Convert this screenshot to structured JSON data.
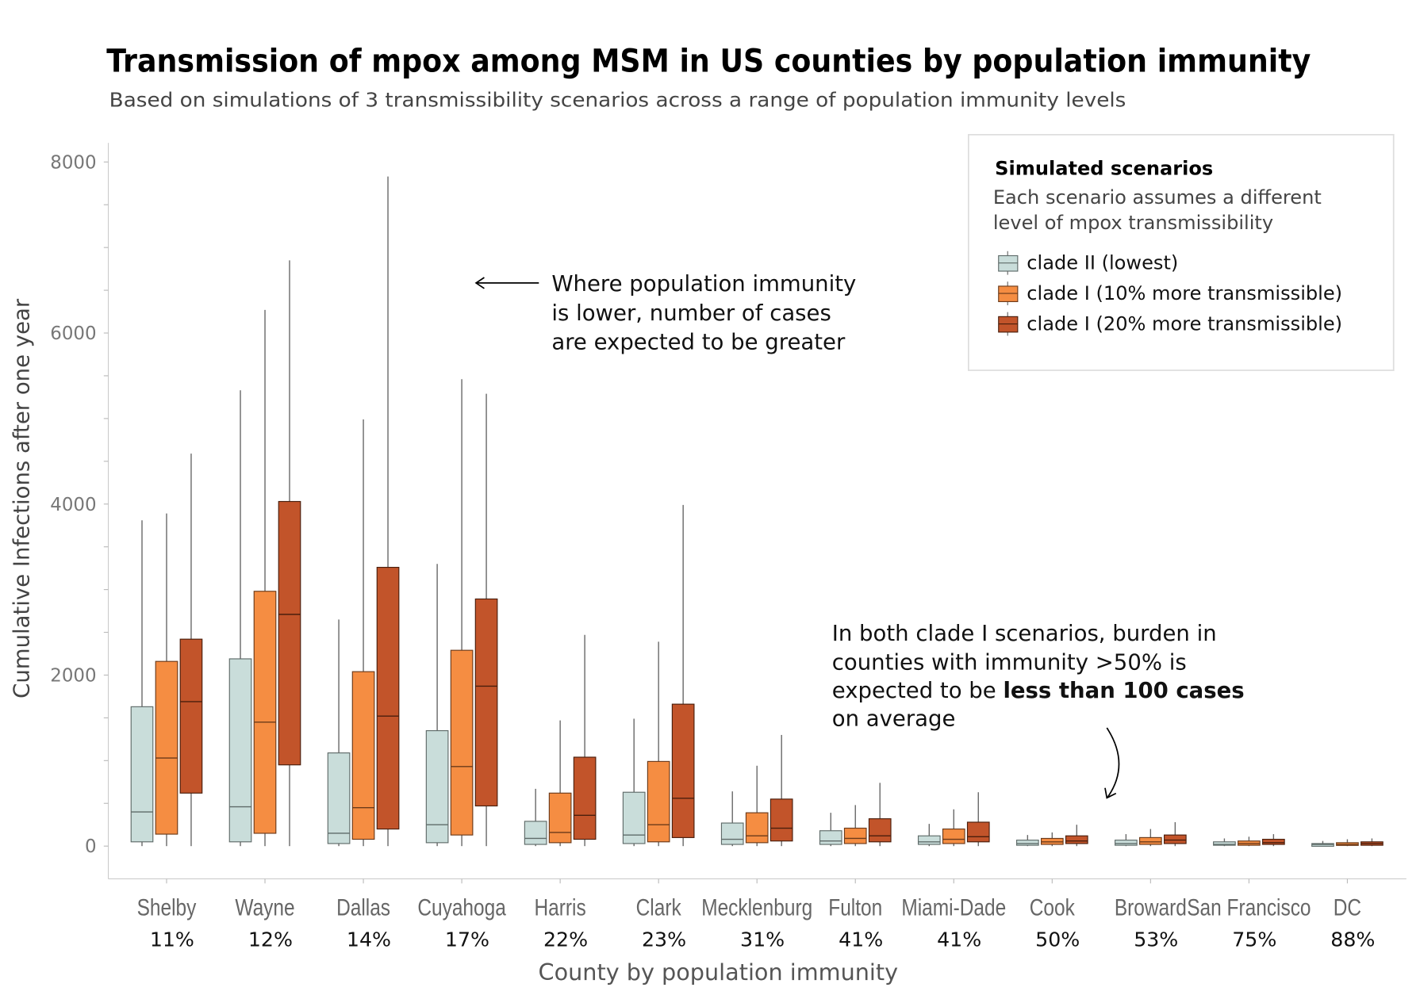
{
  "chart_data": {
    "type": "box",
    "title": "Transmission of mpox among MSM in US counties by population immunity",
    "subtitle": "Based on simulations of 3 transmissibility scenarios across a range of population immunity levels",
    "xlabel": "County by population immunity",
    "ylabel": "Cumulative Infections after one year",
    "ylim": [
      0,
      8000
    ],
    "yticks": [
      "0",
      "2000",
      "4000",
      "6000",
      "8000"
    ],
    "grid": false,
    "legend_placement": "top-right",
    "categories": [
      "Shelby",
      "Wayne",
      "Dallas",
      "Cuyahoga",
      "Harris",
      "Clark",
      "Mecklenburg",
      "Fulton",
      "Miami-Dade",
      "Cook",
      "Broward",
      "San Francisco",
      "DC"
    ],
    "immunity": [
      "11%",
      "12%",
      "14%",
      "17%",
      "22%",
      "23%",
      "31%",
      "41%",
      "41%",
      "50%",
      "53%",
      "75%",
      "88%"
    ],
    "series": [
      {
        "name": "clade II (lowest)",
        "color": "#c9ddda",
        "stroke": "#5f6b69",
        "boxes": [
          {
            "min": 0,
            "q1": 50,
            "median": 400,
            "q3": 1630,
            "max": 3810
          },
          {
            "min": 0,
            "q1": 50,
            "median": 460,
            "q3": 2190,
            "max": 5330
          },
          {
            "min": 0,
            "q1": 30,
            "median": 150,
            "q3": 1090,
            "max": 2650
          },
          {
            "min": 0,
            "q1": 40,
            "median": 250,
            "q3": 1350,
            "max": 3300
          },
          {
            "min": 0,
            "q1": 20,
            "median": 90,
            "q3": 290,
            "max": 670
          },
          {
            "min": 0,
            "q1": 30,
            "median": 130,
            "q3": 630,
            "max": 1490
          },
          {
            "min": 0,
            "q1": 20,
            "median": 80,
            "q3": 270,
            "max": 640
          },
          {
            "min": 0,
            "q1": 20,
            "median": 60,
            "q3": 180,
            "max": 390
          },
          {
            "min": 0,
            "q1": 20,
            "median": 50,
            "q3": 120,
            "max": 260
          },
          {
            "min": 0,
            "q1": 10,
            "median": 30,
            "q3": 70,
            "max": 130
          },
          {
            "min": 0,
            "q1": 10,
            "median": 30,
            "q3": 70,
            "max": 140
          },
          {
            "min": 0,
            "q1": 10,
            "median": 20,
            "q3": 50,
            "max": 90
          },
          {
            "min": 0,
            "q1": 10,
            "median": 20,
            "q3": 30,
            "max": 60
          }
        ]
      },
      {
        "name": "clade I (10% more transmissible)",
        "color": "#f58d42",
        "stroke": "#6b3a1a",
        "boxes": [
          {
            "min": 0,
            "q1": 140,
            "median": 1030,
            "q3": 2160,
            "max": 3890
          },
          {
            "min": 0,
            "q1": 150,
            "median": 1450,
            "q3": 2980,
            "max": 6270
          },
          {
            "min": 0,
            "q1": 80,
            "median": 450,
            "q3": 2040,
            "max": 4990
          },
          {
            "min": 0,
            "q1": 130,
            "median": 930,
            "q3": 2290,
            "max": 5460
          },
          {
            "min": 0,
            "q1": 40,
            "median": 160,
            "q3": 620,
            "max": 1470
          },
          {
            "min": 0,
            "q1": 50,
            "median": 250,
            "q3": 990,
            "max": 2390
          },
          {
            "min": 0,
            "q1": 40,
            "median": 120,
            "q3": 390,
            "max": 940
          },
          {
            "min": 0,
            "q1": 30,
            "median": 90,
            "q3": 210,
            "max": 480
          },
          {
            "min": 0,
            "q1": 30,
            "median": 80,
            "q3": 200,
            "max": 430
          },
          {
            "min": 0,
            "q1": 20,
            "median": 50,
            "q3": 90,
            "max": 160
          },
          {
            "min": 0,
            "q1": 20,
            "median": 50,
            "q3": 100,
            "max": 200
          },
          {
            "min": 0,
            "q1": 10,
            "median": 30,
            "q3": 60,
            "max": 110
          },
          {
            "min": 0,
            "q1": 10,
            "median": 20,
            "q3": 40,
            "max": 80
          }
        ]
      },
      {
        "name": "clade I (20% more transmissible)",
        "color": "#c2542a",
        "stroke": "#4a1e0c",
        "boxes": [
          {
            "min": 0,
            "q1": 620,
            "median": 1690,
            "q3": 2420,
            "max": 4590
          },
          {
            "min": 0,
            "q1": 950,
            "median": 2710,
            "q3": 4030,
            "max": 6850
          },
          {
            "min": 0,
            "q1": 200,
            "median": 1520,
            "q3": 3260,
            "max": 7830
          },
          {
            "min": 0,
            "q1": 470,
            "median": 1870,
            "q3": 2890,
            "max": 5290
          },
          {
            "min": 0,
            "q1": 80,
            "median": 360,
            "q3": 1040,
            "max": 2470
          },
          {
            "min": 0,
            "q1": 100,
            "median": 560,
            "q3": 1660,
            "max": 3990
          },
          {
            "min": 0,
            "q1": 60,
            "median": 210,
            "q3": 550,
            "max": 1300
          },
          {
            "min": 0,
            "q1": 50,
            "median": 120,
            "q3": 320,
            "max": 740
          },
          {
            "min": 0,
            "q1": 50,
            "median": 110,
            "q3": 280,
            "max": 630
          },
          {
            "min": 0,
            "q1": 30,
            "median": 60,
            "q3": 120,
            "max": 250
          },
          {
            "min": 0,
            "q1": 30,
            "median": 70,
            "q3": 130,
            "max": 280
          },
          {
            "min": 0,
            "q1": 20,
            "median": 40,
            "q3": 80,
            "max": 140
          },
          {
            "min": 0,
            "q1": 10,
            "median": 30,
            "q3": 50,
            "max": 90
          }
        ]
      }
    ],
    "legend": {
      "title": "Simulated scenarios",
      "description_line1": "Each scenario assumes a different",
      "description_line2": "level of mpox transmissibility"
    },
    "annotations": {
      "upper": [
        "Where population immunity",
        "is lower, number of cases",
        "are expected to be greater"
      ],
      "lower_line1": "In both clade I scenarios, burden in",
      "lower_line2": "counties with immunity >50% is",
      "lower_line3_regular": "expected to be ",
      "lower_line3_bold": "less than 100 cases",
      "lower_line4": "on average"
    }
  }
}
